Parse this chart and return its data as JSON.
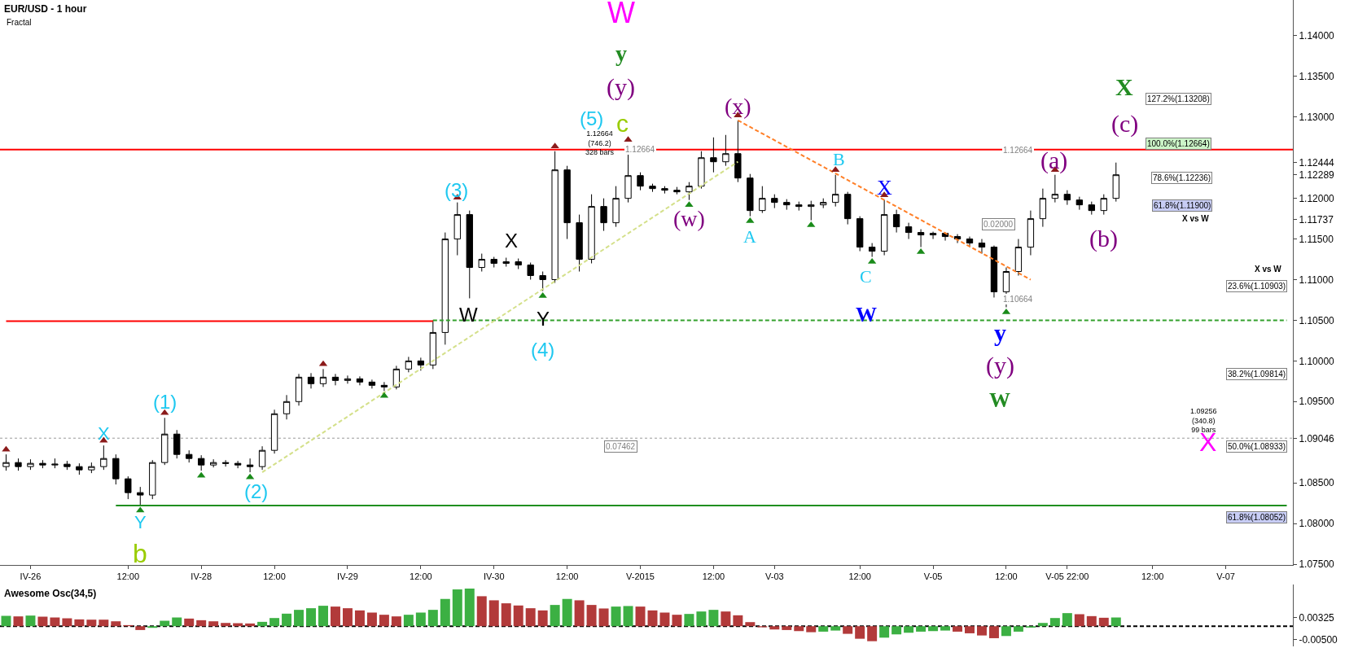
{
  "chart_data": [
    {
      "type": "candlestick",
      "title": "EUR/USD - 1 hour",
      "subtitle": "Fractal",
      "categories": [
        null,
        null,
        "IV-26",
        null,
        null,
        null,
        null,
        null,
        null,
        null,
        "12:00",
        null,
        null,
        null,
        null,
        null,
        "IV-28",
        null,
        null,
        null,
        null,
        null,
        "12:00",
        null,
        null,
        null,
        null,
        null,
        "IV-29",
        null,
        null,
        null,
        null,
        null,
        "12:00",
        null,
        null,
        null,
        null,
        null,
        "IV-30",
        null,
        null,
        null,
        null,
        null,
        "12:00",
        null,
        null,
        null,
        null,
        null,
        "V-2015",
        null,
        null,
        null,
        null,
        null,
        "12:00",
        null,
        null,
        null,
        null,
        "V-03",
        null,
        null,
        null,
        null,
        null,
        null,
        "12:00",
        null,
        null,
        null,
        null,
        null,
        "V-05",
        null,
        null,
        null,
        null,
        null,
        "12:00",
        null,
        null,
        null,
        null,
        "V-05 22:00",
        null,
        null,
        null,
        null,
        null,
        null,
        "12:00",
        null,
        null,
        null,
        null,
        null,
        "V-07",
        null,
        null,
        null,
        null,
        null
      ],
      "ohlc": [
        [
          1.087,
          1.0885,
          1.0865,
          1.0875
        ],
        [
          1.0875,
          1.088,
          1.0865,
          1.087
        ],
        [
          1.087,
          1.0879,
          1.0866,
          1.0874
        ],
        [
          1.0874,
          1.0878,
          1.0868,
          1.0872
        ],
        [
          1.0872,
          1.088,
          1.0868,
          1.0873
        ],
        [
          1.0873,
          1.0877,
          1.0866,
          1.087
        ],
        [
          1.087,
          1.0874,
          1.086,
          1.0866
        ],
        [
          1.0866,
          1.0875,
          1.0862,
          1.087
        ],
        [
          1.087,
          1.0896,
          1.0866,
          1.088
        ],
        [
          1.088,
          1.0885,
          1.0848,
          1.0855
        ],
        [
          1.0855,
          1.0858,
          1.083,
          1.0838
        ],
        [
          1.0838,
          1.0845,
          1.0822,
          1.0835
        ],
        [
          1.0835,
          1.0878,
          1.083,
          1.0875
        ],
        [
          1.0875,
          1.093,
          1.0872,
          1.091
        ],
        [
          1.091,
          1.0915,
          1.088,
          1.0885
        ],
        [
          1.0885,
          1.089,
          1.0875,
          1.088
        ],
        [
          1.088,
          1.0884,
          1.0865,
          1.0872
        ],
        [
          1.0872,
          1.0879,
          1.0869,
          1.0875
        ],
        [
          1.0875,
          1.0878,
          1.087,
          1.0874
        ],
        [
          1.0874,
          1.0877,
          1.0868,
          1.0872
        ],
        [
          1.0872,
          1.088,
          1.0863,
          1.087
        ],
        [
          1.087,
          1.0895,
          1.0866,
          1.089
        ],
        [
          1.089,
          1.094,
          1.0886,
          1.0935
        ],
        [
          1.0935,
          1.0958,
          1.0928,
          1.095
        ],
        [
          1.095,
          1.0984,
          1.0945,
          1.098
        ],
        [
          1.098,
          1.0985,
          1.0966,
          1.0972
        ],
        [
          1.0972,
          1.099,
          1.0968,
          1.098
        ],
        [
          1.098,
          1.0984,
          1.097,
          1.0976
        ],
        [
          1.0976,
          1.0982,
          1.0972,
          1.0978
        ],
        [
          1.0978,
          1.0981,
          1.097,
          1.0974
        ],
        [
          1.0974,
          1.0977,
          1.0966,
          1.097
        ],
        [
          1.097,
          1.0974,
          1.0963,
          1.0968
        ],
        [
          1.0968,
          1.0994,
          1.0965,
          1.099
        ],
        [
          1.099,
          1.1005,
          1.0986,
          1.1
        ],
        [
          1.1,
          1.1004,
          1.0988,
          1.0995
        ],
        [
          1.0995,
          1.105,
          1.099,
          1.1035
        ],
        [
          1.1035,
          1.1158,
          1.102,
          1.115
        ],
        [
          1.115,
          1.1195,
          1.113,
          1.118
        ],
        [
          1.118,
          1.1185,
          1.1077,
          1.1115
        ],
        [
          1.1115,
          1.1132,
          1.111,
          1.1125
        ],
        [
          1.1125,
          1.1128,
          1.1115,
          1.112
        ],
        [
          1.112,
          1.1127,
          1.1116,
          1.1122
        ],
        [
          1.1122,
          1.1126,
          1.1113,
          1.1118
        ],
        [
          1.1118,
          1.1121,
          1.11,
          1.1105
        ],
        [
          1.1105,
          1.111,
          1.1086,
          1.11
        ],
        [
          1.11,
          1.1258,
          1.1096,
          1.1235
        ],
        [
          1.1235,
          1.124,
          1.115,
          1.117
        ],
        [
          1.117,
          1.118,
          1.111,
          1.1125
        ],
        [
          1.1125,
          1.1205,
          1.112,
          1.119
        ],
        [
          1.119,
          1.12,
          1.116,
          1.117
        ],
        [
          1.117,
          1.1215,
          1.1165,
          1.12
        ],
        [
          1.12,
          1.1266,
          1.1195,
          1.1228
        ],
        [
          1.1228,
          1.1232,
          1.121,
          1.1215
        ],
        [
          1.1215,
          1.1218,
          1.1208,
          1.1212
        ],
        [
          1.1212,
          1.1215,
          1.1206,
          1.121
        ],
        [
          1.121,
          1.1214,
          1.1205,
          1.1208
        ],
        [
          1.1208,
          1.122,
          1.1198,
          1.1215
        ],
        [
          1.1215,
          1.1258,
          1.1212,
          1.125
        ],
        [
          1.125,
          1.1275,
          1.1232,
          1.1245
        ],
        [
          1.1245,
          1.1278,
          1.124,
          1.1255
        ],
        [
          1.1255,
          1.1296,
          1.122,
          1.1225
        ],
        [
          1.1225,
          1.123,
          1.1178,
          1.1185
        ],
        [
          1.1185,
          1.1215,
          1.1182,
          1.12
        ],
        [
          1.12,
          1.1205,
          1.1188,
          1.1195
        ],
        [
          1.1195,
          1.1199,
          1.1186,
          1.1192
        ],
        [
          1.1192,
          1.1196,
          1.1185,
          1.119
        ],
        [
          1.119,
          1.1197,
          1.1173,
          1.1192
        ],
        [
          1.1192,
          1.12,
          1.1188,
          1.1195
        ],
        [
          1.1195,
          1.1229,
          1.119,
          1.1205
        ],
        [
          1.1205,
          1.1208,
          1.1168,
          1.1175
        ],
        [
          1.1175,
          1.1178,
          1.1135,
          1.114
        ],
        [
          1.114,
          1.1145,
          1.1128,
          1.1135
        ],
        [
          1.1135,
          1.1198,
          1.113,
          1.118
        ],
        [
          1.118,
          1.1186,
          1.1158,
          1.1165
        ],
        [
          1.1165,
          1.117,
          1.115,
          1.1158
        ],
        [
          1.1158,
          1.1162,
          1.114,
          1.1155
        ],
        [
          1.1155,
          1.1159,
          1.115,
          1.1157
        ],
        [
          1.1157,
          1.1158,
          1.1148,
          1.1153
        ],
        [
          1.1153,
          1.1156,
          1.1145,
          1.115
        ],
        [
          1.115,
          1.1153,
          1.114,
          1.1145
        ],
        [
          1.1145,
          1.115,
          1.1132,
          1.114
        ],
        [
          1.114,
          1.1142,
          1.1078,
          1.1085
        ],
        [
          1.1085,
          1.1115,
          1.1066,
          1.111
        ],
        [
          1.111,
          1.115,
          1.1105,
          1.114
        ],
        [
          1.114,
          1.1185,
          1.113,
          1.1175
        ],
        [
          1.1175,
          1.1212,
          1.1165,
          1.12
        ],
        [
          1.12,
          1.1229,
          1.1195,
          1.1205
        ],
        [
          1.1205,
          1.121,
          1.1192,
          1.1198
        ],
        [
          1.1198,
          1.1202,
          1.1186,
          1.1192
        ],
        [
          1.1192,
          1.1196,
          1.118,
          1.1185
        ],
        [
          1.1185,
          1.1205,
          1.118,
          1.12
        ],
        [
          1.12,
          1.1244,
          1.1196,
          1.1229
        ],
        null,
        null,
        null,
        null,
        null,
        null,
        null,
        null,
        null,
        null,
        null,
        null,
        null,
        null
      ],
      "series": [
        {
          "type": "line",
          "color": "#ff0000",
          "values": [
            1.1049,
            null,
            null,
            null,
            null,
            null,
            null,
            null,
            null,
            null,
            null,
            null,
            null,
            null,
            null,
            null,
            null,
            null,
            null,
            null,
            null,
            null,
            null,
            null,
            null,
            null,
            null,
            null,
            null,
            null,
            null,
            null,
            null,
            null,
            null,
            1.1049,
            null,
            null,
            null,
            null,
            null,
            null,
            null,
            null,
            null,
            null,
            null,
            null,
            null,
            null,
            null,
            null,
            null,
            null,
            null,
            null,
            null,
            null,
            null,
            null,
            null,
            null,
            null,
            null,
            null,
            null,
            null,
            null,
            null,
            null,
            null,
            null,
            null,
            null,
            null,
            null,
            null,
            null,
            null,
            null,
            null,
            null,
            null,
            null,
            null,
            null,
            null,
            null,
            null,
            null,
            null,
            null,
            null,
            null,
            null,
            null,
            null,
            null,
            null,
            null,
            null,
            null,
            null,
            null,
            null,
            null
          ]
        },
        {
          "type": "line",
          "color": "#33a02c",
          "line_style": "dashed",
          "values": [
            null,
            null,
            null,
            null,
            null,
            null,
            null,
            null,
            null,
            null,
            null,
            null,
            null,
            null,
            null,
            null,
            null,
            null,
            null,
            null,
            null,
            null,
            null,
            null,
            null,
            null,
            null,
            null,
            null,
            null,
            null,
            null,
            null,
            null,
            null,
            1.105,
            null,
            null,
            null,
            null,
            null,
            null,
            null,
            null,
            null,
            null,
            null,
            null,
            null,
            null,
            null,
            null,
            null,
            null,
            null,
            null,
            null,
            null,
            null,
            null,
            null,
            null,
            null,
            null,
            null,
            null,
            null,
            null,
            null,
            null,
            null,
            null,
            null,
            null,
            null,
            null,
            null,
            null,
            null,
            null,
            null,
            null,
            null,
            null,
            null,
            null,
            null,
            null,
            null,
            null,
            null,
            null,
            null,
            null,
            null,
            null,
            null,
            null,
            null,
            null,
            null,
            null,
            null,
            null,
            null,
            1.105
          ]
        },
        {
          "type": "line",
          "color": "#1f8f1f",
          "values": [
            null,
            null,
            null,
            null,
            null,
            null,
            null,
            null,
            null,
            1.0822,
            null,
            null,
            null,
            null,
            null,
            null,
            null,
            null,
            null,
            null,
            null,
            null,
            null,
            null,
            null,
            null,
            null,
            null,
            null,
            null,
            null,
            null,
            null,
            null,
            null,
            null,
            null,
            null,
            null,
            null,
            null,
            null,
            null,
            null,
            null,
            null,
            null,
            null,
            null,
            null,
            null,
            null,
            null,
            null,
            null,
            null,
            null,
            null,
            null,
            null,
            null,
            null,
            null,
            null,
            null,
            null,
            null,
            null,
            null,
            null,
            null,
            null,
            null,
            null,
            null,
            null,
            null,
            null,
            null,
            null,
            null,
            null,
            null,
            null,
            null,
            null,
            null,
            null,
            null,
            null,
            null,
            null,
            null,
            null,
            null,
            null,
            null,
            null,
            null,
            null,
            null,
            null,
            null,
            null,
            null,
            1.0822
          ]
        },
        {
          "type": "line",
          "color": "#ff7f27",
          "line_style": "dashed",
          "values": [
            null,
            null,
            null,
            null,
            null,
            null,
            null,
            null,
            null,
            null,
            null,
            null,
            null,
            null,
            null,
            null,
            null,
            null,
            null,
            null,
            null,
            null,
            null,
            null,
            null,
            null,
            null,
            null,
            null,
            null,
            null,
            null,
            null,
            null,
            null,
            null,
            null,
            null,
            null,
            null,
            null,
            null,
            null,
            null,
            null,
            null,
            null,
            null,
            null,
            null,
            null,
            null,
            null,
            null,
            null,
            null,
            null,
            null,
            null,
            null,
            1.1296,
            null,
            null,
            null,
            null,
            null,
            null,
            null,
            null,
            null,
            null,
            null,
            null,
            null,
            null,
            null,
            null,
            null,
            null,
            null,
            null,
            null,
            null,
            null,
            1.11,
            null,
            null,
            null,
            null,
            null,
            null,
            null,
            null,
            null,
            null,
            null,
            null,
            null,
            null,
            null,
            null,
            null,
            null,
            null,
            null,
            null
          ]
        },
        {
          "type": "line",
          "color": "#d4e08a",
          "line_style": "dashed",
          "values": [
            null,
            null,
            null,
            null,
            null,
            null,
            null,
            null,
            null,
            null,
            null,
            null,
            null,
            null,
            null,
            null,
            null,
            null,
            null,
            null,
            null,
            1.0863,
            null,
            null,
            null,
            null,
            null,
            null,
            null,
            null,
            null,
            null,
            null,
            null,
            null,
            null,
            null,
            null,
            null,
            null,
            null,
            null,
            null,
            null,
            null,
            null,
            null,
            null,
            null,
            null,
            null,
            null,
            null,
            null,
            null,
            null,
            null,
            null,
            null,
            null,
            1.1245,
            null,
            null,
            null,
            null,
            null,
            null,
            null,
            null,
            null,
            null,
            null,
            null,
            null,
            null,
            null,
            null,
            null,
            null,
            null,
            null,
            null,
            null,
            null,
            null,
            null,
            null,
            null,
            null,
            null,
            null,
            null,
            null,
            null,
            null,
            null,
            null,
            null,
            null,
            null,
            null,
            null,
            null,
            null,
            null,
            null
          ]
        },
        {
          "type": "scatter",
          "color": "#8b1a1a",
          "marker": "triangle",
          "values": [
            1.0891,
            null,
            null,
            null,
            null,
            null,
            null,
            null,
            1.0902,
            null,
            null,
            null,
            null,
            1.0936,
            null,
            null,
            null,
            null,
            null,
            null,
            null,
            null,
            null,
            null,
            null,
            null,
            1.0996,
            null,
            null,
            null,
            null,
            null,
            null,
            null,
            null,
            null,
            null,
            1.1201,
            null,
            null,
            null,
            null,
            null,
            null,
            null,
            1.1264,
            null,
            null,
            null,
            null,
            null,
            1.1272,
            null,
            null,
            null,
            null,
            null,
            null,
            null,
            null,
            1.1302,
            null,
            null,
            null,
            null,
            null,
            null,
            null,
            1.1235,
            null,
            null,
            null,
            1.1204,
            null,
            null,
            null,
            null,
            null,
            null,
            null,
            null,
            null,
            null,
            null,
            null,
            null,
            1.1235,
            null,
            null,
            null,
            null,
            null,
            null,
            null,
            null,
            null,
            null,
            null,
            null,
            null,
            null,
            null,
            null,
            null,
            null,
            null
          ]
        },
        {
          "type": "scatter",
          "color": "#1a8b1a",
          "marker": "triangle",
          "values": [
            null,
            null,
            null,
            null,
            null,
            null,
            null,
            null,
            null,
            null,
            null,
            1.0816,
            null,
            null,
            null,
            null,
            1.0859,
            null,
            null,
            null,
            1.0857,
            null,
            null,
            null,
            null,
            null,
            null,
            null,
            null,
            null,
            null,
            1.0957,
            null,
            null,
            null,
            null,
            null,
            null,
            null,
            null,
            null,
            null,
            null,
            null,
            1.108,
            null,
            null,
            null,
            null,
            null,
            null,
            null,
            null,
            null,
            null,
            null,
            1.1192,
            null,
            null,
            null,
            null,
            1.1172,
            null,
            null,
            null,
            null,
            1.1167,
            null,
            null,
            null,
            null,
            1.1122,
            null,
            null,
            null,
            1.1134,
            null,
            null,
            null,
            null,
            null,
            null,
            1.106,
            null,
            null,
            null,
            null,
            null,
            null,
            null,
            null,
            null,
            null,
            null,
            null,
            null,
            null,
            null,
            null,
            null,
            null,
            null,
            null,
            null,
            null,
            null
          ]
        }
      ],
      "ref_lines": [
        {
          "axis": "y",
          "value": 1.126,
          "color": "#ff0000"
        },
        {
          "axis": "y",
          "value": 1.0905,
          "color": "#999999",
          "line_style": "dotted"
        }
      ],
      "ylim": [
        1.0749,
        1.1444
      ],
      "yticks": [
        {
          "value": 1.075,
          "label": "1.07500"
        },
        {
          "value": 1.08,
          "label": "1.08000"
        },
        {
          "value": 1.085,
          "label": "1.08500"
        },
        {
          "value": 1.09046,
          "label": "1.09046"
        },
        {
          "value": 1.095,
          "label": "1.09500"
        },
        {
          "value": 1.1,
          "label": "1.10000"
        },
        {
          "value": 1.105,
          "label": "1.10500"
        },
        {
          "value": 1.11,
          "label": "1.11000"
        },
        {
          "value": 1.115,
          "label": "1.11500"
        },
        {
          "value": 1.11737,
          "label": "1.11737"
        },
        {
          "value": 1.12,
          "label": "1.12000"
        },
        {
          "value": 1.12289,
          "label": "1.12289"
        },
        {
          "value": 1.12444,
          "label": "1.12444"
        },
        {
          "value": 1.13,
          "label": "1.13000"
        },
        {
          "value": 1.135,
          "label": "1.13500"
        },
        {
          "value": 1.14,
          "label": "1.14000"
        }
      ],
      "annotations": [
        "W",
        "y",
        "(y)",
        "c",
        "(5)",
        "(3)",
        "X",
        "W",
        "Y",
        "(4)",
        "(1)",
        "(2)",
        "X",
        "Y",
        "b",
        "(w)",
        "(x)",
        "A",
        "B",
        "C",
        "W",
        "X",
        "y",
        "(y)",
        "W",
        "(a)",
        "(b)",
        "(c)",
        "X",
        "X",
        "1.12664\n(746.2)\n328 bars",
        "1.12664",
        "0.07462",
        "1.12664",
        "0.02000",
        "1.10664",
        "127.2%(1.13208)",
        "100.0%(1.12664)",
        "78.6%(1.12236)",
        "61.8%(1.11900)",
        "X vs W",
        "X vs W",
        "23.6%(1.10903)",
        "38.2%(1.09814)",
        "50.0%(1.08933)",
        "61.8%(1.08052)",
        "1.09256\n(340.8)\n99 bars"
      ]
    },
    {
      "type": "bar",
      "title": "Awesome Osc(34,5)",
      "values": [
        0.0038,
        0.0036,
        0.0039,
        0.0035,
        0.0032,
        0.0029,
        0.0025,
        0.0024,
        0.0024,
        0.0018,
        0.0004,
        -0.0014,
        -0.0006,
        0.002,
        0.0032,
        0.0028,
        0.0022,
        0.0018,
        0.0012,
        0.0011,
        0.001,
        0.0016,
        0.003,
        0.0046,
        0.006,
        0.0066,
        0.0075,
        0.0072,
        0.0066,
        0.0058,
        0.005,
        0.0042,
        0.0036,
        0.0042,
        0.005,
        0.006,
        0.01,
        0.0135,
        0.0138,
        0.011,
        0.0095,
        0.0084,
        0.0076,
        0.0066,
        0.0058,
        0.0078,
        0.01,
        0.0095,
        0.0078,
        0.0065,
        0.0072,
        0.0074,
        0.0072,
        0.0058,
        0.005,
        0.0042,
        0.0045,
        0.0054,
        0.006,
        0.0054,
        0.004,
        0.0015,
        -0.0004,
        -0.0012,
        -0.0014,
        -0.0018,
        -0.0022,
        -0.002,
        -0.0016,
        -0.0028,
        -0.0046,
        -0.0055,
        -0.0042,
        -0.003,
        -0.0024,
        -0.002,
        -0.0018,
        -0.0016,
        -0.002,
        -0.0026,
        -0.0034,
        -0.0044,
        -0.0036,
        -0.002,
        -0.0005,
        0.0012,
        0.003,
        0.0048,
        0.0044,
        0.0037,
        0.0031,
        0.0032,
        null,
        null,
        null,
        null,
        null,
        null,
        null,
        null,
        null,
        null,
        null,
        null,
        null,
        null
      ],
      "colors": [
        "#3cb043",
        "#b23a3a",
        "#3cb043",
        "#b23a3a",
        "#b23a3a",
        "#b23a3a",
        "#b23a3a",
        "#b23a3a",
        "#b23a3a",
        "#b23a3a",
        "#b23a3a",
        "#b23a3a",
        "#3cb043",
        "#3cb043",
        "#3cb043",
        "#b23a3a",
        "#b23a3a",
        "#b23a3a",
        "#b23a3a",
        "#b23a3a",
        "#b23a3a",
        "#3cb043",
        "#3cb043",
        "#3cb043",
        "#3cb043",
        "#3cb043",
        "#3cb043",
        "#b23a3a",
        "#b23a3a",
        "#b23a3a",
        "#b23a3a",
        "#b23a3a",
        "#b23a3a",
        "#3cb043",
        "#3cb043",
        "#3cb043",
        "#3cb043",
        "#3cb043",
        "#3cb043",
        "#b23a3a",
        "#b23a3a",
        "#b23a3a",
        "#b23a3a",
        "#b23a3a",
        "#b23a3a",
        "#3cb043",
        "#3cb043",
        "#b23a3a",
        "#b23a3a",
        "#b23a3a",
        "#3cb043",
        "#3cb043",
        "#b23a3a",
        "#b23a3a",
        "#b23a3a",
        "#b23a3a",
        "#3cb043",
        "#3cb043",
        "#3cb043",
        "#b23a3a",
        "#b23a3a",
        "#b23a3a",
        "#b23a3a",
        "#b23a3a",
        "#b23a3a",
        "#b23a3a",
        "#b23a3a",
        "#3cb043",
        "#3cb043",
        "#b23a3a",
        "#b23a3a",
        "#b23a3a",
        "#3cb043",
        "#3cb043",
        "#3cb043",
        "#3cb043",
        "#3cb043",
        "#3cb043",
        "#b23a3a",
        "#b23a3a",
        "#b23a3a",
        "#b23a3a",
        "#3cb043",
        "#3cb043",
        "#3cb043",
        "#3cb043",
        "#3cb043",
        "#3cb043",
        "#b23a3a",
        "#b23a3a",
        "#b23a3a",
        "#3cb043",
        null,
        null,
        null,
        null,
        null,
        null,
        null,
        null,
        null,
        null,
        null,
        null,
        null,
        null
      ],
      "ylim": [
        -0.0074,
        0.0153
      ],
      "yticks": [
        {
          "value": 0.00325,
          "label": "0.00325"
        },
        {
          "value": -0.005,
          "label": "-0.00500"
        }
      ],
      "ref_lines": [
        {
          "axis": "y",
          "value": 0,
          "color": "#000000",
          "line_style": "dashed"
        }
      ],
      "tick_labels": "y"
    }
  ]
}
